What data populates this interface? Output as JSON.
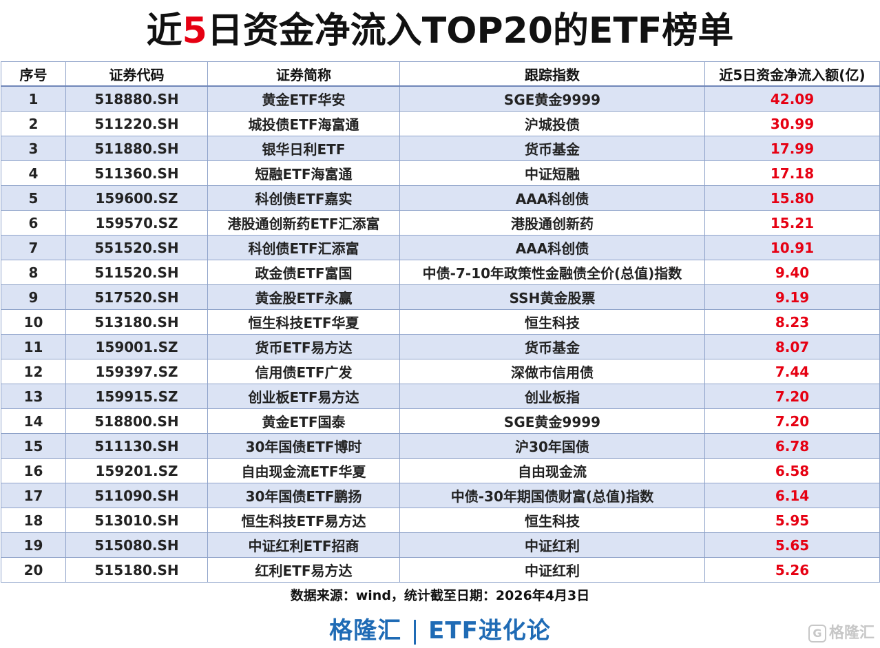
{
  "title": {
    "part1": "近",
    "highlight": "5",
    "part2": "日资金净流入TOP20的ETF榜单"
  },
  "table": {
    "headers": [
      "序号",
      "证券代码",
      "证券简称",
      "跟踪指数",
      "近5日资金净流入额(亿)"
    ],
    "rows": [
      [
        "1",
        "518880.SH",
        "黄金ETF华安",
        "SGE黄金9999",
        "42.09"
      ],
      [
        "2",
        "511220.SH",
        "城投债ETF海富通",
        "沪城投债",
        "30.99"
      ],
      [
        "3",
        "511880.SH",
        "银华日利ETF",
        "货币基金",
        "17.99"
      ],
      [
        "4",
        "511360.SH",
        "短融ETF海富通",
        "中证短融",
        "17.18"
      ],
      [
        "5",
        "159600.SZ",
        "科创债ETF嘉实",
        "AAA科创债",
        "15.80"
      ],
      [
        "6",
        "159570.SZ",
        "港股通创新药ETF汇添富",
        "港股通创新药",
        "15.21"
      ],
      [
        "7",
        "551520.SH",
        "科创债ETF汇添富",
        "AAA科创债",
        "10.91"
      ],
      [
        "8",
        "511520.SH",
        "政金债ETF富国",
        "中债-7-10年政策性金融债全价(总值)指数",
        "9.40"
      ],
      [
        "9",
        "517520.SH",
        "黄金股ETF永赢",
        "SSH黄金股票",
        "9.19"
      ],
      [
        "10",
        "513180.SH",
        "恒生科技ETF华夏",
        "恒生科技",
        "8.23"
      ],
      [
        "11",
        "159001.SZ",
        "货币ETF易方达",
        "货币基金",
        "8.07"
      ],
      [
        "12",
        "159397.SZ",
        "信用债ETF广发",
        "深做市信用债",
        "7.44"
      ],
      [
        "13",
        "159915.SZ",
        "创业板ETF易方达",
        "创业板指",
        "7.20"
      ],
      [
        "14",
        "518800.SH",
        "黄金ETF国泰",
        "SGE黄金9999",
        "7.20"
      ],
      [
        "15",
        "511130.SH",
        "30年国债ETF博时",
        "沪30年国债",
        "6.78"
      ],
      [
        "16",
        "159201.SZ",
        "自由现金流ETF华夏",
        "自由现金流",
        "6.58"
      ],
      [
        "17",
        "511090.SH",
        "30年国债ETF鹏扬",
        "中债-30年期国债财富(总值)指数",
        "6.14"
      ],
      [
        "18",
        "513010.SH",
        "恒生科技ETF易方达",
        "恒生科技",
        "5.95"
      ],
      [
        "19",
        "515080.SH",
        "中证红利ETF招商",
        "中证红利",
        "5.65"
      ],
      [
        "20",
        "515180.SH",
        "红利ETF易方达",
        "中证红利",
        "5.26"
      ]
    ]
  },
  "footer": {
    "source": "数据来源：wind，统计截至日期：2026年4月3日",
    "brand_left": "格隆汇",
    "brand_right": "ETF进化论",
    "watermark": "格隆汇"
  },
  "colors": {
    "highlight": "#e60012",
    "row_band": "#dbe3f4",
    "brand": "#1f6bb5"
  }
}
